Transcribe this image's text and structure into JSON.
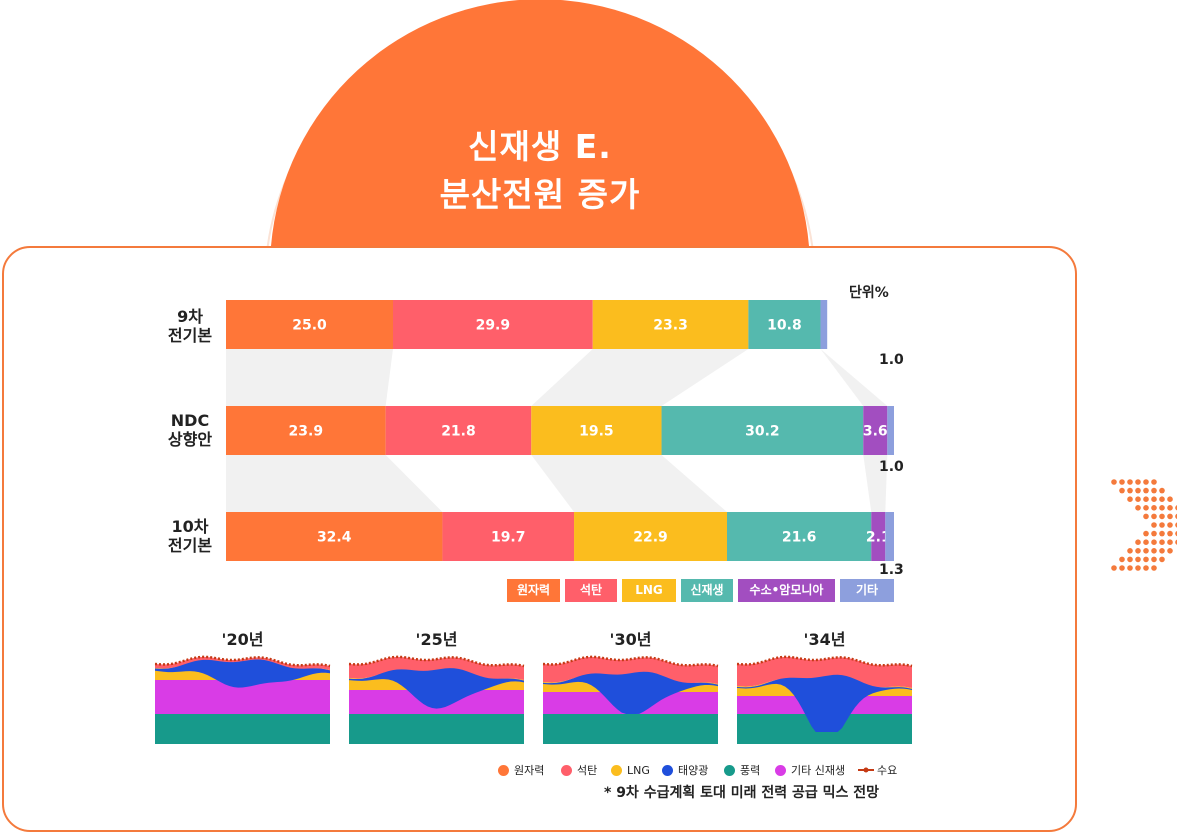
{
  "header": {
    "title_line1": "신재생 E.",
    "title_line2": "분산전원 증가"
  },
  "colors": {
    "nuclear": "#ff7638",
    "coal": "#ff5f6a",
    "lng": "#fbbd1e",
    "renewable": "#55b9ae",
    "hydrogen": "#a24ec0",
    "other": "#8d9fdd",
    "accent": "#f47a3c",
    "solar": "#1f4fdb",
    "wind": "#179a8b",
    "other_renewable": "#d93ce6",
    "demand": "#c53a14"
  },
  "chart_data": {
    "type": "bar",
    "stacked": true,
    "orientation": "horizontal",
    "unit_label": "단위%",
    "categories": [
      "9차 전기본",
      "NDC 상향안",
      "10차 전기본"
    ],
    "category_lines": [
      [
        "9차",
        "전기본"
      ],
      [
        "NDC",
        "상향안"
      ],
      [
        "10차",
        "전기본"
      ]
    ],
    "series": [
      {
        "name": "원자력",
        "values": [
          25.0,
          23.9,
          32.4
        ]
      },
      {
        "name": "석탄",
        "values": [
          29.9,
          21.8,
          19.7
        ]
      },
      {
        "name": "LNG",
        "values": [
          23.3,
          19.5,
          22.9
        ]
      },
      {
        "name": "신재생",
        "values": [
          10.8,
          30.2,
          21.6
        ]
      },
      {
        "name": "수소•암모니아",
        "values": [
          0,
          3.6,
          2.1
        ]
      },
      {
        "name": "기타",
        "values": [
          1.0,
          1.0,
          1.3
        ]
      }
    ],
    "labels": [
      [
        "25.0",
        "29.9",
        "23.3",
        "10.8",
        "",
        "1.0"
      ],
      [
        "23.9",
        "21.8",
        "19.5",
        "30.2",
        "3.6",
        "1.0"
      ],
      [
        "32.4",
        "19.7",
        "22.9",
        "21.6",
        "2.1",
        "1.3"
      ]
    ],
    "legend_position": "bottom-right"
  },
  "mini_charts": {
    "years": [
      "'20년",
      "'25년",
      "'30년",
      "'34년"
    ],
    "legend": [
      "원자력",
      "석탄",
      "LNG",
      "태양광",
      "풍력",
      "기타 신재생",
      "수요"
    ],
    "footnote": "* 9차 수급계획 토대 미래 전력 공급 믹스 전망"
  }
}
